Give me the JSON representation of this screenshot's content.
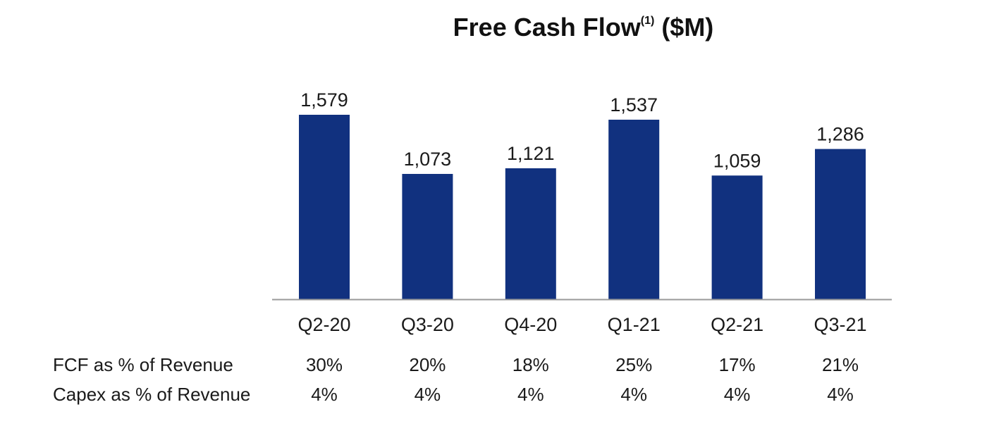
{
  "chart_data": {
    "type": "bar",
    "title": "Free Cash Flow",
    "title_superscript": "(1)",
    "title_unit": "($M)",
    "categories": [
      "Q2-20",
      "Q3-20",
      "Q4-20",
      "Q1-21",
      "Q2-21",
      "Q3-21"
    ],
    "values": [
      1579,
      1073,
      1121,
      1537,
      1059,
      1286
    ],
    "value_labels": [
      "1,579",
      "1,073",
      "1,121",
      "1,537",
      "1,059",
      "1,286"
    ],
    "xlabel": "",
    "ylabel": "",
    "ylim": [
      0,
      1579
    ],
    "grid": false,
    "bar_color": "#11317f",
    "axis_color": "#9a9a9a"
  },
  "metrics_table": {
    "rows": [
      {
        "label": "FCF as % of Revenue",
        "values": [
          "30%",
          "20%",
          "18%",
          "25%",
          "17%",
          "21%"
        ]
      },
      {
        "label": "Capex as % of Revenue",
        "values": [
          "4%",
          "4%",
          "4%",
          "4%",
          "4%",
          "4%"
        ]
      }
    ]
  }
}
